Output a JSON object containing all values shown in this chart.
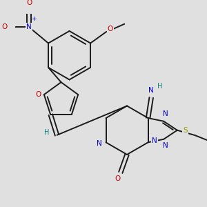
{
  "background_color": "#e0e0e0",
  "bond_color": "#1a1a1a",
  "atom_colors": {
    "O": "#cc0000",
    "N": "#0000cc",
    "S": "#999900",
    "H": "#008080",
    "C": "#1a1a1a"
  },
  "figsize": [
    3.0,
    3.0
  ],
  "dpi": 100
}
